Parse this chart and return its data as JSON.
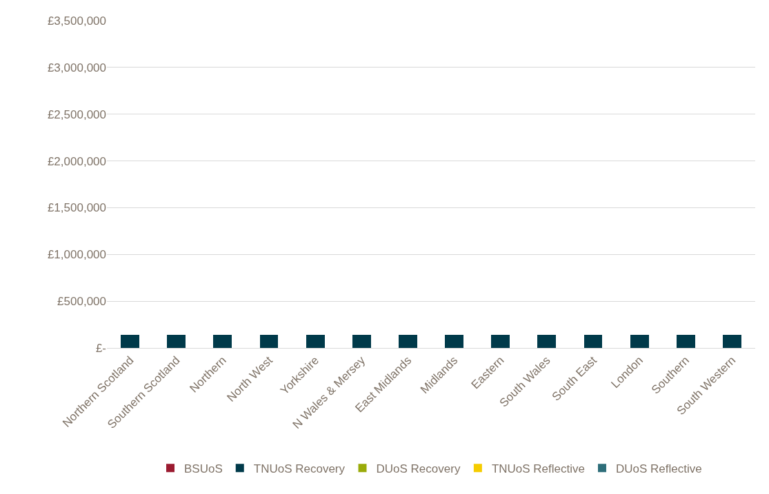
{
  "chart_data": {
    "type": "bar",
    "stacked": true,
    "categories": [
      "Northern Scotland",
      "Southern Scotland",
      "Northern",
      "North West",
      "Yorkshire",
      "N Wales & Mersey",
      "East Midlands",
      "Midlands",
      "Eastern",
      "South Wales",
      "South East",
      "London",
      "Southern",
      "South Western"
    ],
    "series": [
      {
        "name": "BSUoS",
        "color": "#9b1b30",
        "values": [
          0,
          0,
          0,
          0,
          0,
          0,
          0,
          0,
          0,
          0,
          0,
          0,
          0,
          0
        ]
      },
      {
        "name": "TNUoS Recovery",
        "color": "#003a4a",
        "values": [
          140000,
          140000,
          140000,
          140000,
          140000,
          140000,
          140000,
          140000,
          140000,
          140000,
          140000,
          140000,
          140000,
          140000
        ]
      },
      {
        "name": "DUoS Recovery",
        "color": "#9aab0a",
        "values": [
          0,
          0,
          0,
          0,
          0,
          0,
          0,
          0,
          0,
          0,
          0,
          0,
          0,
          0
        ]
      },
      {
        "name": "TNUoS Reflective",
        "color": "#f5cc00",
        "values": [
          0,
          0,
          0,
          0,
          0,
          0,
          0,
          0,
          0,
          0,
          0,
          0,
          0,
          0
        ]
      },
      {
        "name": "DUoS Reflective",
        "color": "#2e6e7a",
        "values": [
          0,
          0,
          0,
          0,
          0,
          0,
          0,
          0,
          0,
          0,
          0,
          0,
          0,
          0
        ]
      }
    ],
    "ylim": [
      0,
      3500000
    ],
    "yticks": [
      {
        "value": 0,
        "label": "£-"
      },
      {
        "value": 500000,
        "label": "£500,000"
      },
      {
        "value": 1000000,
        "label": "£1,000,000"
      },
      {
        "value": 1500000,
        "label": "£1,500,000"
      },
      {
        "value": 2000000,
        "label": "£2,000,000"
      },
      {
        "value": 2500000,
        "label": "£2,500,000"
      },
      {
        "value": 3000000,
        "label": "£3,000,000"
      },
      {
        "value": 3500000,
        "label": "£3,500,000"
      }
    ],
    "grid": "y",
    "legend": "bottom"
  }
}
